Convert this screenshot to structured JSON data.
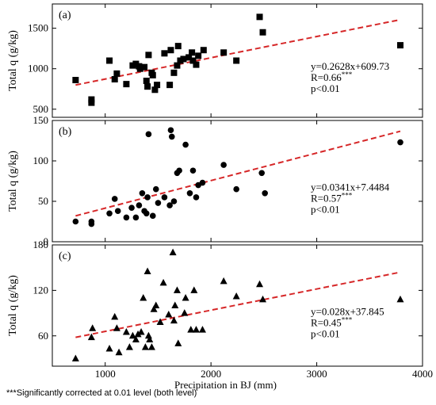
{
  "chart_data": [
    {
      "type": "scatter",
      "panel_label": "(a)",
      "ylabel": "Total q (g/kg)",
      "xlabel": "",
      "xlim": [
        500,
        4000
      ],
      "ylim": [
        400,
        1800
      ],
      "yticks": [
        500,
        1000,
        1500
      ],
      "marker": "square",
      "points": [
        [
          720,
          860
        ],
        [
          870,
          620
        ],
        [
          870,
          580
        ],
        [
          1040,
          1100
        ],
        [
          1090,
          870
        ],
        [
          1110,
          940
        ],
        [
          1200,
          810
        ],
        [
          1260,
          1040
        ],
        [
          1290,
          1060
        ],
        [
          1320,
          1030
        ],
        [
          1330,
          1000
        ],
        [
          1370,
          1020
        ],
        [
          1390,
          850
        ],
        [
          1410,
          1170
        ],
        [
          1400,
          780
        ],
        [
          1440,
          950
        ],
        [
          1450,
          920
        ],
        [
          1470,
          740
        ],
        [
          1490,
          800
        ],
        [
          1560,
          1190
        ],
        [
          1610,
          800
        ],
        [
          1620,
          1230
        ],
        [
          1650,
          950
        ],
        [
          1680,
          1040
        ],
        [
          1690,
          1280
        ],
        [
          1710,
          1100
        ],
        [
          1740,
          1120
        ],
        [
          1790,
          1140
        ],
        [
          1820,
          1200
        ],
        [
          1830,
          1100
        ],
        [
          1860,
          1050
        ],
        [
          1880,
          1160
        ],
        [
          1930,
          1230
        ],
        [
          2120,
          1200
        ],
        [
          2240,
          1100
        ],
        [
          2460,
          1640
        ],
        [
          2490,
          1450
        ],
        [
          3790,
          1290
        ]
      ],
      "fit": {
        "slope": 0.2628,
        "intercept": 609.73,
        "x_range": [
          720,
          3790
        ]
      },
      "equation": "y=0.2628x+609.73",
      "r_label": "R=0.66",
      "r_sup": "***",
      "p_label": "p<0.01"
    },
    {
      "type": "scatter",
      "panel_label": "(b)",
      "ylabel": "Total q (g/kg)",
      "xlabel": "",
      "xlim": [
        500,
        4000
      ],
      "ylim": [
        0,
        150
      ],
      "yticks": [
        0,
        50,
        100,
        150
      ],
      "marker": "circle",
      "points": [
        [
          720,
          25
        ],
        [
          870,
          25
        ],
        [
          870,
          22
        ],
        [
          1040,
          35
        ],
        [
          1090,
          53
        ],
        [
          1120,
          38
        ],
        [
          1200,
          30
        ],
        [
          1250,
          42
        ],
        [
          1290,
          30
        ],
        [
          1320,
          45
        ],
        [
          1350,
          60
        ],
        [
          1370,
          38
        ],
        [
          1390,
          35
        ],
        [
          1400,
          55
        ],
        [
          1410,
          133
        ],
        [
          1450,
          32
        ],
        [
          1480,
          65
        ],
        [
          1500,
          48
        ],
        [
          1560,
          55
        ],
        [
          1610,
          45
        ],
        [
          1620,
          138
        ],
        [
          1630,
          130
        ],
        [
          1650,
          50
        ],
        [
          1680,
          85
        ],
        [
          1700,
          88
        ],
        [
          1760,
          120
        ],
        [
          1800,
          60
        ],
        [
          1830,
          88
        ],
        [
          1860,
          55
        ],
        [
          1880,
          70
        ],
        [
          1920,
          73
        ],
        [
          2120,
          95
        ],
        [
          2240,
          65
        ],
        [
          2480,
          85
        ],
        [
          2510,
          60
        ],
        [
          3790,
          123
        ]
      ],
      "fit": {
        "slope": 0.0341,
        "intercept": 7.4484,
        "x_range": [
          720,
          3790
        ]
      },
      "equation": "y=0.0341x+7.4484",
      "r_label": "R=0.57",
      "r_sup": "***",
      "p_label": "p<0.01"
    },
    {
      "type": "scatter",
      "panel_label": "(c)",
      "ylabel": "Total q (g/kg)",
      "xlabel": "Precipitation in BJ (mm)",
      "xlim": [
        500,
        4000
      ],
      "ylim": [
        20,
        180
      ],
      "yticks": [
        60,
        120,
        180
      ],
      "xticks": [
        1000,
        2000,
        3000,
        4000
      ],
      "marker": "triangle",
      "points": [
        [
          720,
          30
        ],
        [
          870,
          58
        ],
        [
          880,
          70
        ],
        [
          1040,
          43
        ],
        [
          1090,
          85
        ],
        [
          1110,
          70
        ],
        [
          1130,
          38
        ],
        [
          1200,
          65
        ],
        [
          1230,
          45
        ],
        [
          1260,
          60
        ],
        [
          1290,
          55
        ],
        [
          1310,
          62
        ],
        [
          1340,
          65
        ],
        [
          1360,
          110
        ],
        [
          1380,
          45
        ],
        [
          1400,
          145
        ],
        [
          1410,
          60
        ],
        [
          1420,
          55
        ],
        [
          1440,
          45
        ],
        [
          1460,
          95
        ],
        [
          1480,
          100
        ],
        [
          1520,
          78
        ],
        [
          1550,
          130
        ],
        [
          1600,
          88
        ],
        [
          1640,
          170
        ],
        [
          1650,
          80
        ],
        [
          1660,
          100
        ],
        [
          1680,
          120
        ],
        [
          1690,
          50
        ],
        [
          1750,
          90
        ],
        [
          1760,
          110
        ],
        [
          1810,
          68
        ],
        [
          1840,
          120
        ],
        [
          1860,
          68
        ],
        [
          1920,
          68
        ],
        [
          2120,
          132
        ],
        [
          2240,
          112
        ],
        [
          2460,
          128
        ],
        [
          2490,
          108
        ],
        [
          3790,
          108
        ]
      ],
      "fit": {
        "slope": 0.028,
        "intercept": 37.845,
        "x_range": [
          720,
          3790
        ]
      },
      "equation": "y=0.028x+37.845",
      "r_label": "R=0.45",
      "r_sup": "***",
      "p_label": "p<0.01"
    }
  ],
  "colors": {
    "marker": "#000000",
    "fit_line": "#d62728",
    "axis": "#000000"
  },
  "footnote": "***Significantly corrected at 0.01 level (both level)"
}
